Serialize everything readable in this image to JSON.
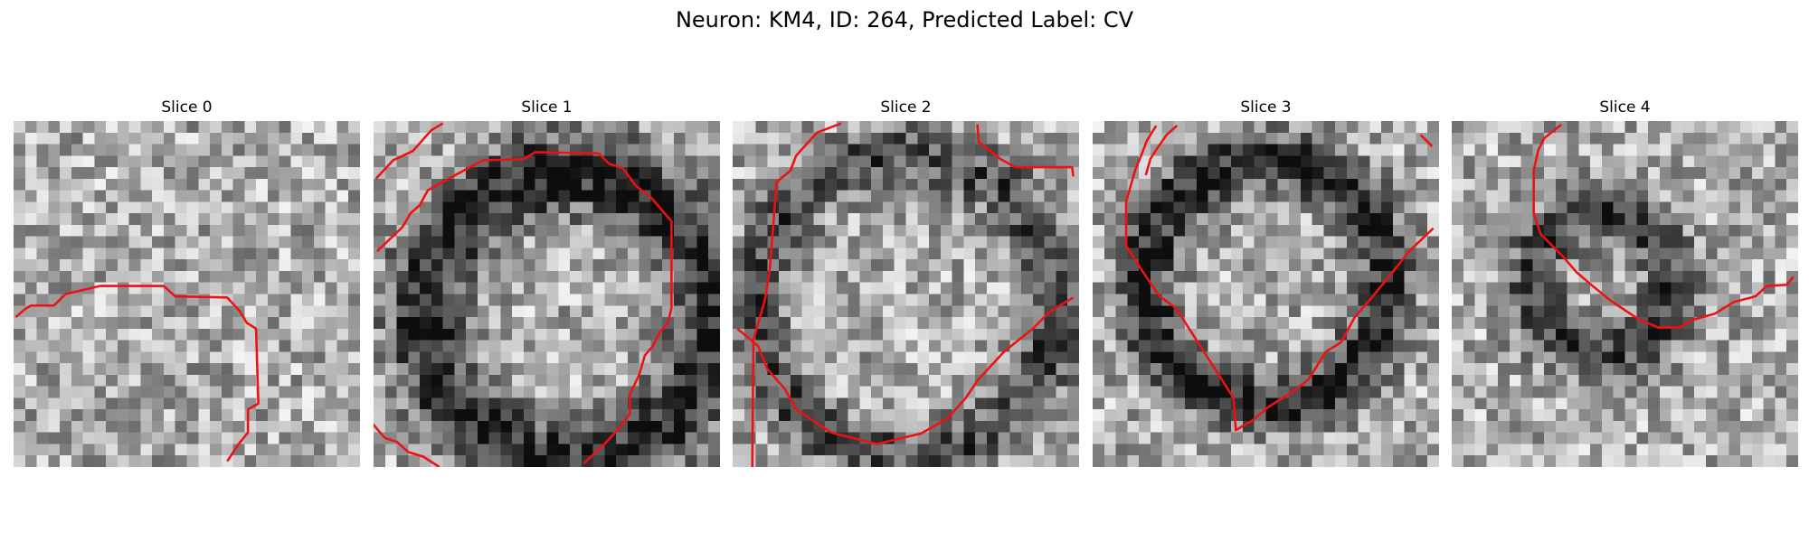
{
  "figure": {
    "title": "Neuron: KM4, ID: 264, Predicted Label: CV",
    "contour_color": "#ee1111"
  },
  "panels": [
    {
      "label": "Slice 0"
    },
    {
      "label": "Slice 1"
    },
    {
      "label": "Slice 2"
    },
    {
      "label": "Slice 3"
    },
    {
      "label": "Slice 4"
    }
  ]
}
